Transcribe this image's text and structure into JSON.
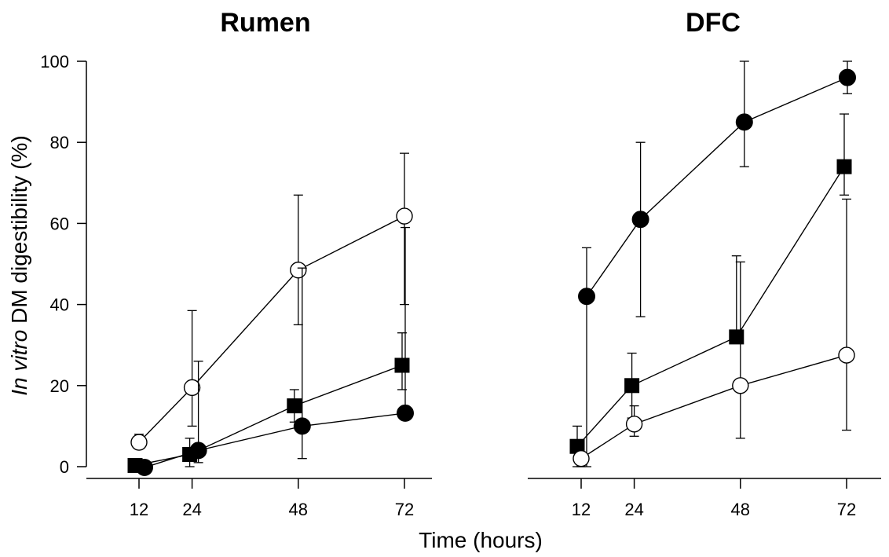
{
  "chart_data": {
    "type": "line",
    "xlabel": "Time (hours)",
    "ylabel_italic": "In vitro",
    "ylabel_rest": " DM digestibility (%)",
    "xticks": [
      12,
      24,
      48,
      72
    ],
    "yticks": [
      0,
      20,
      40,
      60,
      80,
      100
    ],
    "ylim": [
      0,
      100
    ],
    "grid": false,
    "panels": [
      {
        "title": "Rumen",
        "series": [
          {
            "marker": "open-circle",
            "points": [
              {
                "x": 12,
                "y": 6,
                "err_lo": 5,
                "err_hi": 8
              },
              {
                "x": 24,
                "y": 19.5,
                "err_lo": 10,
                "err_hi": 38.5
              },
              {
                "x": 48,
                "y": 48.5,
                "err_lo": 35,
                "err_hi": 67
              },
              {
                "x": 72,
                "y": 61.8,
                "err_lo": 40,
                "err_hi": 77.3
              }
            ]
          },
          {
            "marker": "filled-square",
            "points": [
              {
                "x": 12,
                "y": 0.3,
                "err_lo": 0.3,
                "err_hi": 0.3
              },
              {
                "x": 24,
                "y": 3,
                "err_lo": 0,
                "err_hi": 7
              },
              {
                "x": 48,
                "y": 15,
                "err_lo": 11,
                "err_hi": 19
              },
              {
                "x": 72,
                "y": 25,
                "err_lo": 19,
                "err_hi": 33
              }
            ]
          },
          {
            "marker": "filled-circle",
            "points": [
              {
                "x": 12,
                "y": -0.2,
                "err_lo": -0.2,
                "err_hi": -0.2
              },
              {
                "x": 24,
                "y": 4,
                "err_lo": 1,
                "err_hi": 26
              },
              {
                "x": 48,
                "y": 10,
                "err_lo": 2,
                "err_hi": 49
              },
              {
                "x": 72,
                "y": 13.2,
                "err_lo": 13.2,
                "err_hi": 59
              }
            ]
          }
        ]
      },
      {
        "title": "DFC",
        "series": [
          {
            "marker": "filled-circle",
            "points": [
              {
                "x": 12,
                "y": 42,
                "err_lo": 0,
                "err_hi": 54
              },
              {
                "x": 24,
                "y": 61,
                "err_lo": 37,
                "err_hi": 80
              },
              {
                "x": 48,
                "y": 85,
                "err_lo": 74,
                "err_hi": 100
              },
              {
                "x": 72,
                "y": 96,
                "err_lo": 92,
                "err_hi": 100
              }
            ]
          },
          {
            "marker": "filled-square",
            "points": [
              {
                "x": 12,
                "y": 5,
                "err_lo": 0,
                "err_hi": 10
              },
              {
                "x": 24,
                "y": 20,
                "err_lo": 12,
                "err_hi": 28
              },
              {
                "x": 48,
                "y": 32,
                "err_lo": 32,
                "err_hi": 52
              },
              {
                "x": 72,
                "y": 74,
                "err_lo": 67,
                "err_hi": 87
              }
            ]
          },
          {
            "marker": "open-circle",
            "points": [
              {
                "x": 12,
                "y": 2,
                "err_lo": 0,
                "err_hi": 3
              },
              {
                "x": 24,
                "y": 10.5,
                "err_lo": 7.5,
                "err_hi": 15
              },
              {
                "x": 48,
                "y": 20,
                "err_lo": 7,
                "err_hi": 50.5
              },
              {
                "x": 72,
                "y": 27.5,
                "err_lo": 9,
                "err_hi": 66
              }
            ]
          }
        ]
      }
    ]
  }
}
